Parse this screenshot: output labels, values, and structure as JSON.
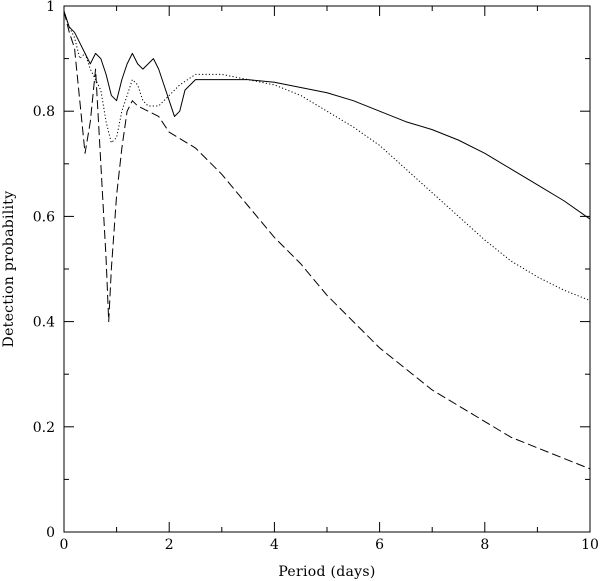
{
  "chart_data": {
    "type": "line",
    "title": "",
    "xlabel": "Period (days)",
    "ylabel": "Detection probability",
    "xlim": [
      0,
      10
    ],
    "ylim": [
      0,
      1
    ],
    "x_ticks": [
      0,
      2,
      4,
      6,
      8,
      10
    ],
    "x_tick_labels": [
      "0",
      "2",
      "4",
      "6",
      "8",
      "10"
    ],
    "y_ticks": [
      0,
      0.2,
      0.4,
      0.6,
      0.8,
      1
    ],
    "y_tick_labels": [
      "0",
      "0.2",
      "0.4",
      "0.6",
      "0.8",
      "1"
    ],
    "grid": false,
    "legend": "none",
    "series": [
      {
        "style": "solid",
        "points": [
          [
            0,
            0.99
          ],
          [
            0.1,
            0.96
          ],
          [
            0.2,
            0.95
          ],
          [
            0.3,
            0.93
          ],
          [
            0.4,
            0.91
          ],
          [
            0.5,
            0.89
          ],
          [
            0.6,
            0.91
          ],
          [
            0.7,
            0.9
          ],
          [
            0.8,
            0.87
          ],
          [
            0.9,
            0.83
          ],
          [
            1.0,
            0.82
          ],
          [
            1.1,
            0.86
          ],
          [
            1.2,
            0.89
          ],
          [
            1.3,
            0.91
          ],
          [
            1.4,
            0.89
          ],
          [
            1.5,
            0.88
          ],
          [
            1.6,
            0.89
          ],
          [
            1.7,
            0.9
          ],
          [
            1.8,
            0.88
          ],
          [
            1.9,
            0.85
          ],
          [
            2.0,
            0.82
          ],
          [
            2.1,
            0.79
          ],
          [
            2.2,
            0.8
          ],
          [
            2.3,
            0.84
          ],
          [
            2.5,
            0.86
          ],
          [
            2.8,
            0.86
          ],
          [
            3.0,
            0.86
          ],
          [
            3.5,
            0.86
          ],
          [
            4.0,
            0.855
          ],
          [
            4.5,
            0.845
          ],
          [
            5.0,
            0.835
          ],
          [
            5.5,
            0.82
          ],
          [
            6.0,
            0.8
          ],
          [
            6.5,
            0.78
          ],
          [
            7.0,
            0.765
          ],
          [
            7.5,
            0.745
          ],
          [
            8.0,
            0.72
          ],
          [
            8.5,
            0.69
          ],
          [
            9.0,
            0.66
          ],
          [
            9.5,
            0.63
          ],
          [
            10.0,
            0.595
          ]
        ]
      },
      {
        "style": "dotted",
        "points": [
          [
            0,
            0.99
          ],
          [
            0.1,
            0.96
          ],
          [
            0.2,
            0.94
          ],
          [
            0.3,
            0.9
          ],
          [
            0.4,
            0.91
          ],
          [
            0.5,
            0.88
          ],
          [
            0.6,
            0.86
          ],
          [
            0.7,
            0.84
          ],
          [
            0.8,
            0.78
          ],
          [
            0.9,
            0.74
          ],
          [
            1.0,
            0.75
          ],
          [
            1.1,
            0.8
          ],
          [
            1.2,
            0.83
          ],
          [
            1.3,
            0.86
          ],
          [
            1.4,
            0.85
          ],
          [
            1.5,
            0.82
          ],
          [
            1.6,
            0.81
          ],
          [
            1.8,
            0.81
          ],
          [
            2.0,
            0.83
          ],
          [
            2.2,
            0.85
          ],
          [
            2.5,
            0.87
          ],
          [
            3.0,
            0.87
          ],
          [
            3.5,
            0.86
          ],
          [
            4.0,
            0.85
          ],
          [
            4.5,
            0.83
          ],
          [
            5.0,
            0.8
          ],
          [
            5.5,
            0.77
          ],
          [
            6.0,
            0.735
          ],
          [
            6.5,
            0.69
          ],
          [
            7.0,
            0.645
          ],
          [
            7.5,
            0.6
          ],
          [
            8.0,
            0.555
          ],
          [
            8.5,
            0.515
          ],
          [
            9.0,
            0.485
          ],
          [
            9.5,
            0.46
          ],
          [
            10.0,
            0.44
          ]
        ]
      },
      {
        "style": "dashed",
        "points": [
          [
            0,
            0.99
          ],
          [
            0.1,
            0.95
          ],
          [
            0.2,
            0.92
          ],
          [
            0.3,
            0.82
          ],
          [
            0.4,
            0.72
          ],
          [
            0.5,
            0.78
          ],
          [
            0.6,
            0.88
          ],
          [
            0.7,
            0.7
          ],
          [
            0.8,
            0.52
          ],
          [
            0.85,
            0.4
          ],
          [
            0.9,
            0.5
          ],
          [
            1.0,
            0.64
          ],
          [
            1.1,
            0.73
          ],
          [
            1.2,
            0.8
          ],
          [
            1.3,
            0.82
          ],
          [
            1.4,
            0.81
          ],
          [
            1.6,
            0.8
          ],
          [
            1.8,
            0.79
          ],
          [
            2.0,
            0.76
          ],
          [
            2.5,
            0.73
          ],
          [
            3.0,
            0.68
          ],
          [
            3.5,
            0.62
          ],
          [
            4.0,
            0.56
          ],
          [
            4.5,
            0.51
          ],
          [
            5.0,
            0.45
          ],
          [
            5.5,
            0.4
          ],
          [
            6.0,
            0.35
          ],
          [
            6.5,
            0.31
          ],
          [
            7.0,
            0.27
          ],
          [
            7.5,
            0.24
          ],
          [
            8.0,
            0.21
          ],
          [
            8.5,
            0.18
          ],
          [
            9.0,
            0.16
          ],
          [
            9.5,
            0.14
          ],
          [
            10.0,
            0.12
          ]
        ]
      }
    ]
  }
}
